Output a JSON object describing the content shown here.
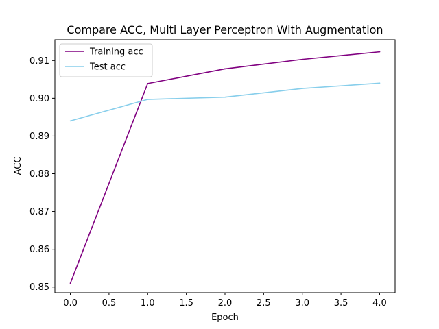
{
  "chart_data": {
    "type": "line",
    "title": "Compare ACC, Multi Layer Perceptron With Augmentation",
    "xlabel": "Epoch",
    "ylabel": "ACC",
    "x": [
      0,
      1,
      2,
      3,
      4
    ],
    "xlim": [
      -0.2,
      4.2
    ],
    "ylim": [
      0.8485,
      0.9155
    ],
    "xticks": [
      0.0,
      0.5,
      1.0,
      1.5,
      2.0,
      2.5,
      3.0,
      3.5,
      4.0
    ],
    "xtick_labels": [
      "0.0",
      "0.5",
      "1.0",
      "1.5",
      "2.0",
      "2.5",
      "3.0",
      "3.5",
      "4.0"
    ],
    "yticks": [
      0.85,
      0.86,
      0.87,
      0.88,
      0.89,
      0.9,
      0.91
    ],
    "ytick_labels": [
      "0.85",
      "0.86",
      "0.87",
      "0.88",
      "0.89",
      "0.90",
      "0.91"
    ],
    "grid": false,
    "legend_position": "top-left",
    "series": [
      {
        "name": "Training acc",
        "color": "#800080",
        "values": [
          0.851,
          0.9039,
          0.9078,
          0.9103,
          0.9123
        ]
      },
      {
        "name": "Test acc",
        "color": "#87ceeb",
        "values": [
          0.894,
          0.8997,
          0.9003,
          0.9026,
          0.904
        ]
      }
    ]
  }
}
